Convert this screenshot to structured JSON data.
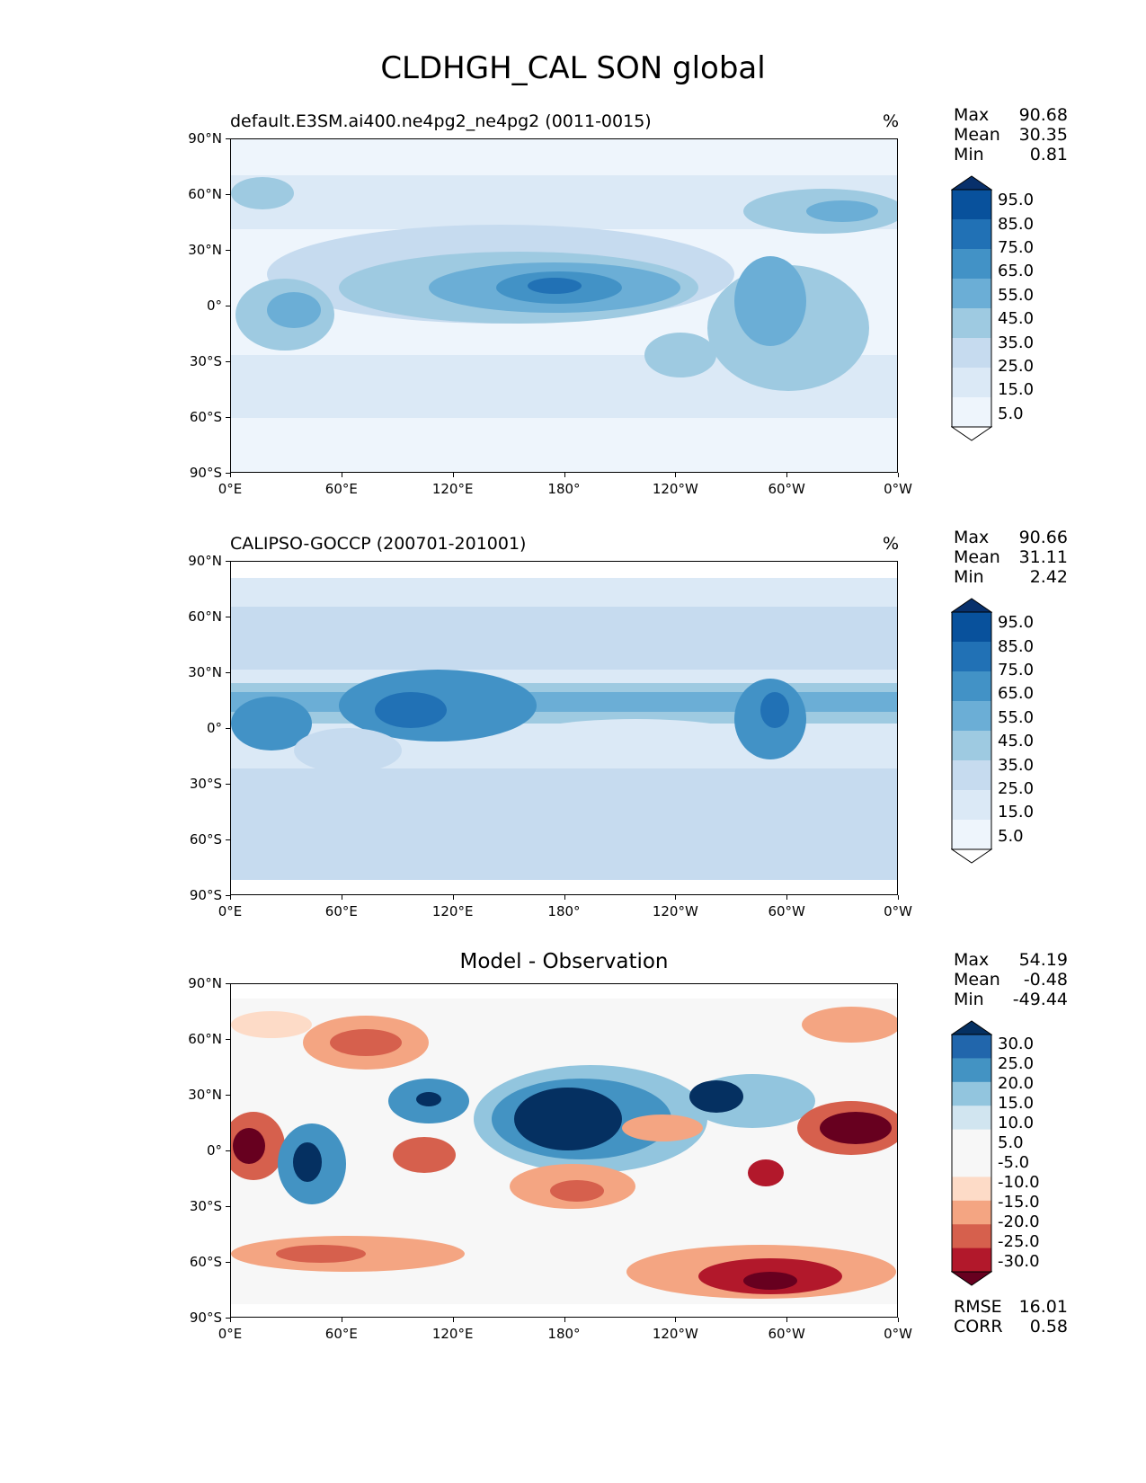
{
  "figure_title": "CLDHGH_CAL SON global",
  "x_tick_labels": [
    "0°E",
    "60°E",
    "120°E",
    "180°",
    "120°W",
    "60°W",
    "0°W"
  ],
  "y_tick_labels": [
    "90°N",
    "60°N",
    "30°N",
    "0°",
    "30°S",
    "60°S",
    "90°S"
  ],
  "panels": [
    {
      "title": "default.E3SM.ai400.ne4pg2_ne4pg2 (0011-0015)",
      "units": "%",
      "stats": {
        "max_label": "Max",
        "max": "90.68",
        "mean_label": "Mean",
        "mean": "30.35",
        "min_label": "Min",
        "min": "0.81"
      },
      "colorbar_levels": [
        "95.0",
        "85.0",
        "75.0",
        "65.0",
        "55.0",
        "45.0",
        "35.0",
        "25.0",
        "15.0",
        "5.0"
      ],
      "colorbar_colors": [
        "#08306b",
        "#08519c",
        "#2171b5",
        "#4292c6",
        "#6baed6",
        "#9ecae1",
        "#c6dbef",
        "#dbe9f6",
        "#eef5fc",
        "#ffffff"
      ]
    },
    {
      "title": "CALIPSO-GOCCP (200701-201001)",
      "units": "%",
      "stats": {
        "max_label": "Max",
        "max": "90.66",
        "mean_label": "Mean",
        "mean": "31.11",
        "min_label": "Min",
        "min": "2.42"
      },
      "colorbar_levels": [
        "95.0",
        "85.0",
        "75.0",
        "65.0",
        "55.0",
        "45.0",
        "35.0",
        "25.0",
        "15.0",
        "5.0"
      ],
      "colorbar_colors": [
        "#08306b",
        "#08519c",
        "#2171b5",
        "#4292c6",
        "#6baed6",
        "#9ecae1",
        "#c6dbef",
        "#dbe9f6",
        "#eef5fc",
        "#ffffff"
      ]
    },
    {
      "title": "Model - Observation",
      "stats": {
        "max_label": "Max",
        "max": "54.19",
        "mean_label": "Mean",
        "mean": "-0.48",
        "min_label": "Min",
        "min": "-49.44"
      },
      "colorbar_levels": [
        "30.0",
        "25.0",
        "20.0",
        "15.0",
        "10.0",
        "5.0",
        "-5.0",
        "-10.0",
        "-15.0",
        "-20.0",
        "-25.0",
        "-30.0"
      ],
      "colorbar_colors": [
        "#053061",
        "#2166ac",
        "#4393c3",
        "#92c5de",
        "#d1e5f0",
        "#f7f7f7",
        "#f7f7f7",
        "#fddbc7",
        "#f4a582",
        "#d6604d",
        "#b2182b",
        "#67001f"
      ],
      "extra_stats": {
        "rmse_label": "RMSE",
        "rmse": "16.01",
        "corr_label": "CORR",
        "corr": "0.58"
      }
    }
  ]
}
